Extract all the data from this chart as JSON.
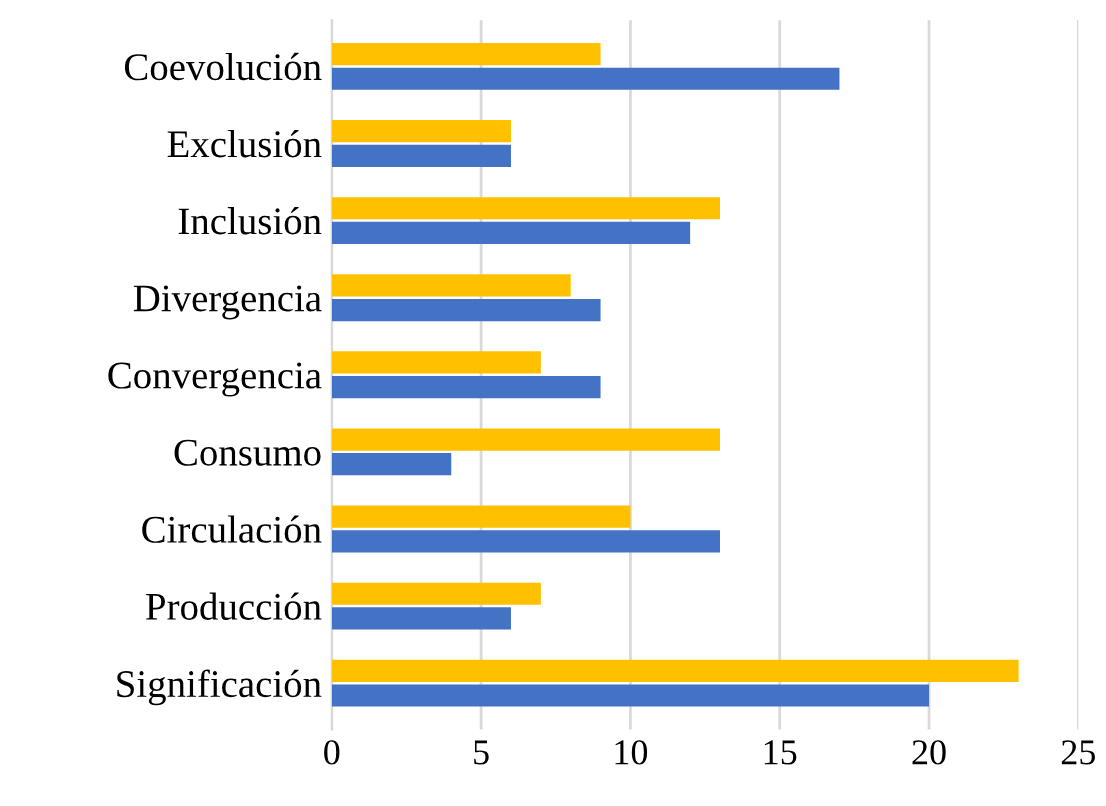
{
  "chart_data": {
    "type": "bar",
    "orientation": "horizontal",
    "categories": [
      "Coevolución",
      "Exclusión",
      "Inclusión",
      "Divergencia",
      "Convergencia",
      "Consumo",
      "Circulación",
      "Producción",
      "Significación"
    ],
    "series": [
      {
        "color": "#ffc000",
        "values": [
          9,
          6,
          13,
          8,
          7,
          13,
          10,
          7,
          23
        ]
      },
      {
        "color": "#4472c4",
        "values": [
          17,
          6,
          12,
          9,
          9,
          4,
          13,
          6,
          20
        ]
      }
    ],
    "xlim": [
      0,
      25
    ],
    "xticks": [
      0,
      5,
      10,
      15,
      20,
      25
    ],
    "grid": "x",
    "legend": false
  }
}
